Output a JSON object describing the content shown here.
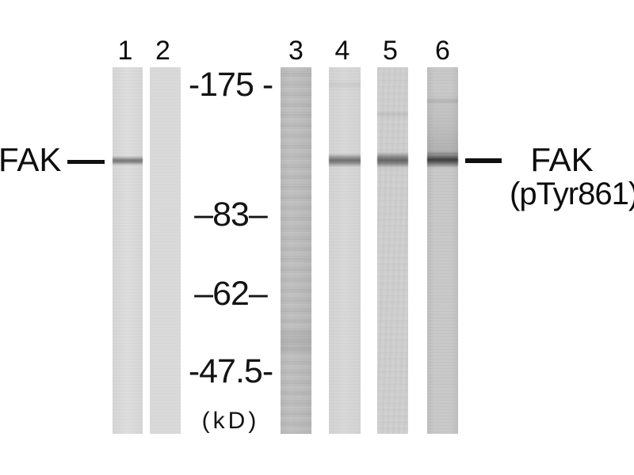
{
  "figure": {
    "technique": "western-blot",
    "lane_numbers": [
      "1",
      "2",
      "3",
      "4",
      "5",
      "6"
    ],
    "left_band_label": "FAK",
    "right_band_label": {
      "line1": "FAK",
      "line2": "(pTyr861)"
    },
    "mw_markers": [
      {
        "label": "-175 -",
        "kd": 175
      },
      {
        "label": "–83–",
        "kd": 83
      },
      {
        "label": "–62–",
        "kd": 62
      },
      {
        "label": "-47.5-",
        "kd": 47.5
      }
    ],
    "unit_label": "(kD)",
    "bands": {
      "lanes_with_band": [
        "1",
        "4",
        "5",
        "6"
      ],
      "band_color": "#3f3f3f"
    },
    "lane_base_colors": [
      "#dcdcdc",
      "#dadada",
      "#c4c4c4",
      "#d7d7d7",
      "#cfcfcf",
      "#c9c9c9"
    ],
    "background_color": "#ffffff",
    "text_color": "#111111"
  }
}
